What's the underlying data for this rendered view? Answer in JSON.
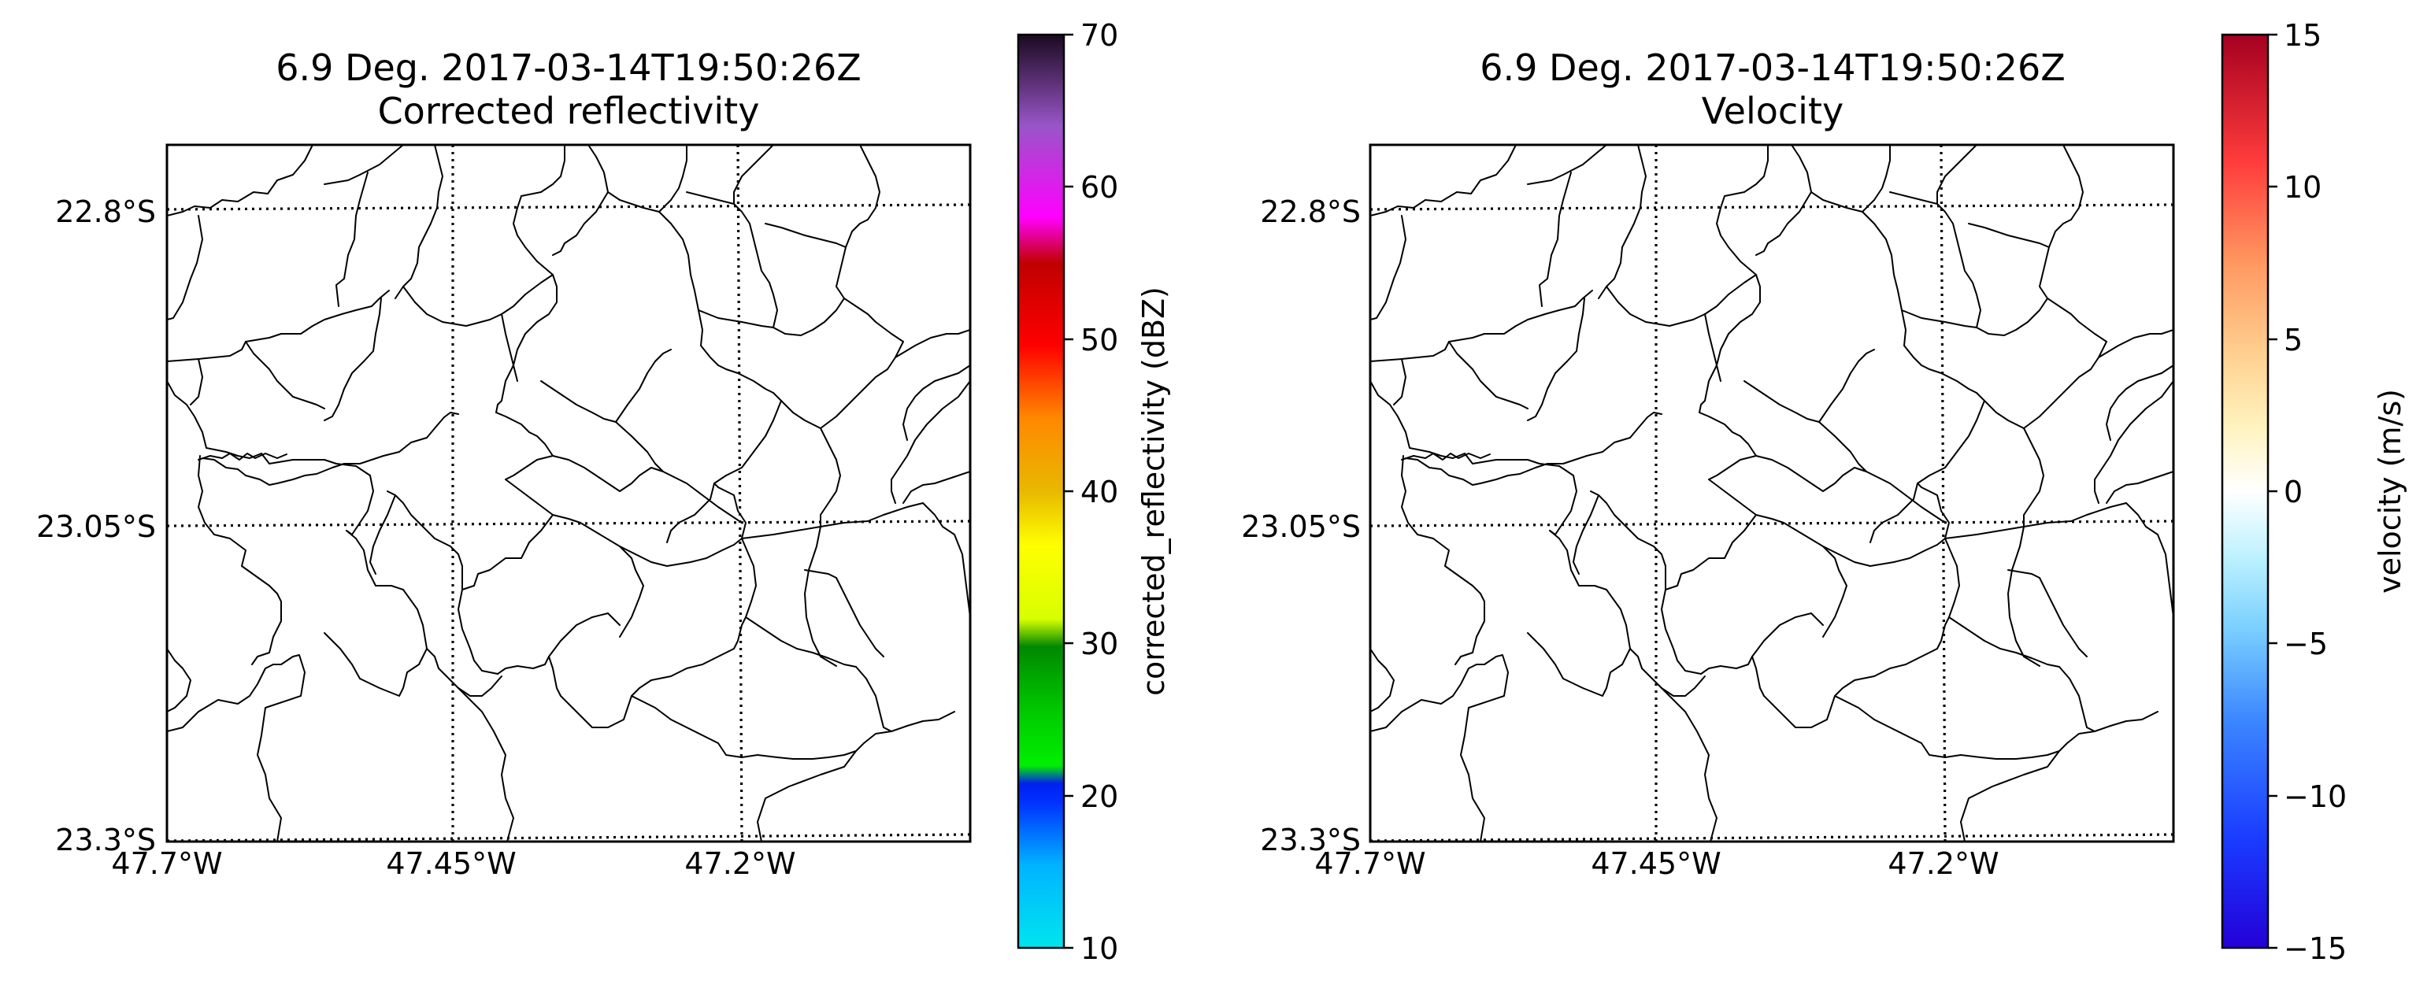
{
  "panels": [
    {
      "title_line1": "6.9 Deg. 2017-03-14T19:50:26Z",
      "title_line2": "Corrected reflectivity",
      "lat_labels": [
        "22.8°S",
        "23.05°S",
        "23.3°S"
      ],
      "lon_labels": [
        "47.7°W",
        "47.45°W",
        "47.2°W"
      ],
      "colorbar": {
        "label": "corrected_reflectivity (dBZ)",
        "ticks": [
          "10",
          "20",
          "30",
          "40",
          "50",
          "60",
          "70"
        ],
        "range": [
          10,
          70
        ],
        "cmap": "pyart_NWSRef"
      }
    },
    {
      "title_line1": "6.9 Deg. 2017-03-14T19:50:26Z",
      "title_line2": "Velocity",
      "lat_labels": [
        "22.8°S",
        "23.05°S",
        "23.3°S"
      ],
      "lon_labels": [
        "47.7°W",
        "47.45°W",
        "47.2°W"
      ],
      "colorbar": {
        "label": "velocity (m/s)",
        "ticks": [
          "15",
          "10",
          "5",
          "0",
          "−5",
          "−10",
          "−15"
        ],
        "range": [
          -15,
          15
        ],
        "cmap": "pyart_BuDRd12"
      }
    }
  ],
  "colors": {
    "background": "#ffffff",
    "lines": "#000000"
  }
}
